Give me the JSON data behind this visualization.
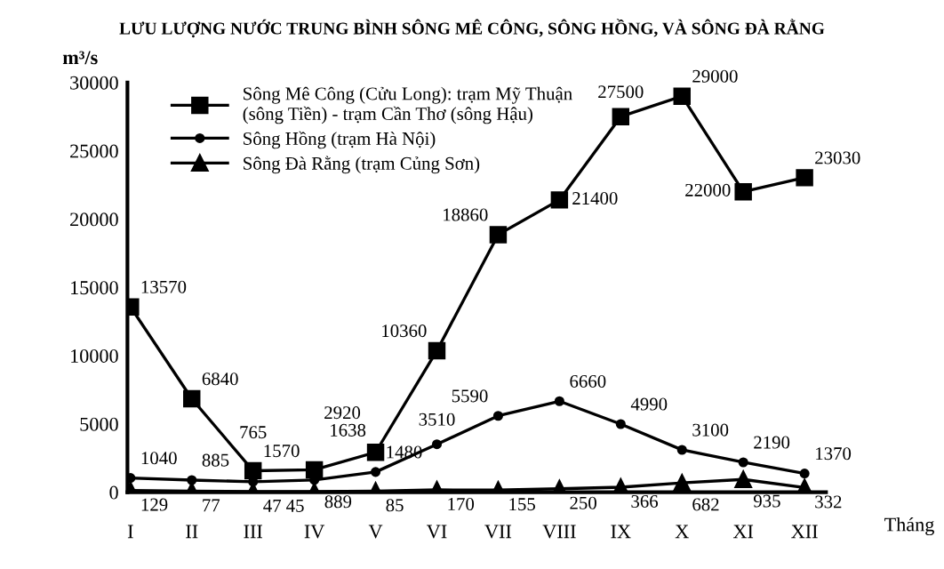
{
  "chart_data": {
    "type": "line",
    "title": "LƯU LƯỢNG NƯỚC TRUNG BÌNH SÔNG MÊ CÔNG, SÔNG HỒNG, VÀ SÔNG ĐÀ RẰNG",
    "ylabel": "m³/s",
    "xlabel": "Tháng",
    "categories": [
      "I",
      "II",
      "III",
      "IV",
      "V",
      "VI",
      "VII",
      "VIII",
      "IX",
      "X",
      "XI",
      "XII"
    ],
    "ylim": [
      0,
      30000
    ],
    "yticks": [
      0,
      5000,
      10000,
      15000,
      20000,
      25000,
      30000
    ],
    "grid": false,
    "legend": "top left",
    "data_labels": true,
    "series": [
      {
        "name": "Sông Mê Công (Cửu Long): trạm Mỹ Thuận (sông Tiền) - trạm Cần Thơ (sông Hậu)",
        "color": "#000000",
        "marker": "square",
        "values": [
          13570,
          6840,
          1570,
          1638,
          2920,
          10360,
          18860,
          21400,
          27500,
          29000,
          22000,
          23030
        ]
      },
      {
        "name": "Sông Hồng (trạm Hà Nội)",
        "color": "#000000",
        "marker": "circle",
        "values": [
          1040,
          885,
          765,
          889,
          1480,
          3510,
          5590,
          6660,
          4990,
          3100,
          2190,
          1370
        ]
      },
      {
        "name": "Sông Đà Rằng (trạm Củng Sơn)",
        "color": "#000000",
        "marker": "triangle",
        "values": [
          129,
          77,
          47,
          45,
          85,
          170,
          155,
          250,
          366,
          682,
          935,
          332
        ]
      }
    ]
  }
}
